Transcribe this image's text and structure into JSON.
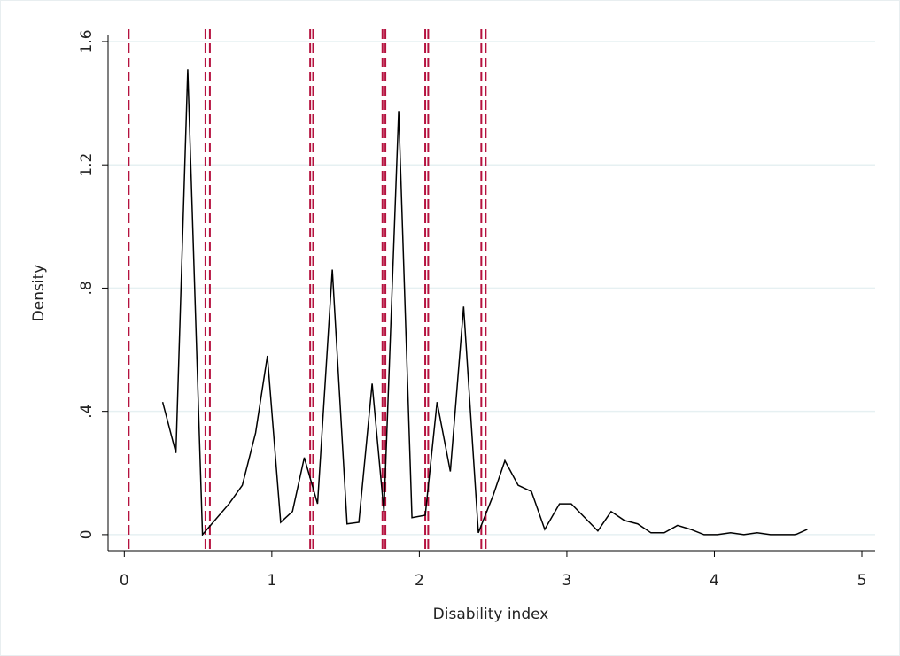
{
  "chart_data": {
    "type": "line",
    "x_label": "Disability index",
    "y_label": "Density",
    "xlim": [
      -0.11,
      5.09
    ],
    "ylim": [
      -0.052,
      1.62
    ],
    "xticks": [
      0,
      1,
      2,
      3,
      4,
      5
    ],
    "yticks": [
      0,
      {
        "value": 0.4,
        "label": ".4"
      },
      {
        "value": 0.8,
        "label": ".8"
      },
      1.2,
      1.6
    ],
    "grid": true,
    "reference_lines_x": [
      0.03,
      0.55,
      0.58,
      1.26,
      1.28,
      1.75,
      1.77,
      2.04,
      2.06,
      2.42,
      2.45
    ],
    "reference_line_color": "#b5123f",
    "color": "#000000",
    "x": [
      0.26,
      0.35,
      0.43,
      0.53,
      0.71,
      0.8,
      0.89,
      0.97,
      1.06,
      1.14,
      1.22,
      1.31,
      1.41,
      1.51,
      1.59,
      1.68,
      1.76,
      1.86,
      1.95,
      2.04,
      2.12,
      2.21,
      2.3,
      2.4,
      2.5,
      2.58,
      2.67,
      2.76,
      2.85,
      2.95,
      3.03,
      3.21,
      3.3,
      3.39,
      3.48,
      3.57,
      3.66,
      3.75,
      3.84,
      3.93,
      4.02,
      4.11,
      4.2,
      4.29,
      4.38,
      4.47,
      4.55,
      4.63
    ],
    "values": [
      0.43,
      0.265,
      1.51,
      0,
      0.1,
      0.16,
      0.33,
      0.58,
      0.04,
      0.075,
      0.25,
      0.1,
      0.86,
      0.035,
      0.04,
      0.49,
      0.075,
      1.375,
      0.055,
      0.063,
      0.43,
      0.205,
      0.74,
      0.006,
      0.127,
      0.24,
      0.16,
      0.14,
      0.017,
      0.1,
      0.1,
      0.012,
      0.075,
      0.046,
      0.035,
      0.006,
      0.006,
      0.03,
      0.017,
      0,
      0,
      0.006,
      0,
      0.006,
      0,
      0,
      0,
      0.017
    ]
  }
}
